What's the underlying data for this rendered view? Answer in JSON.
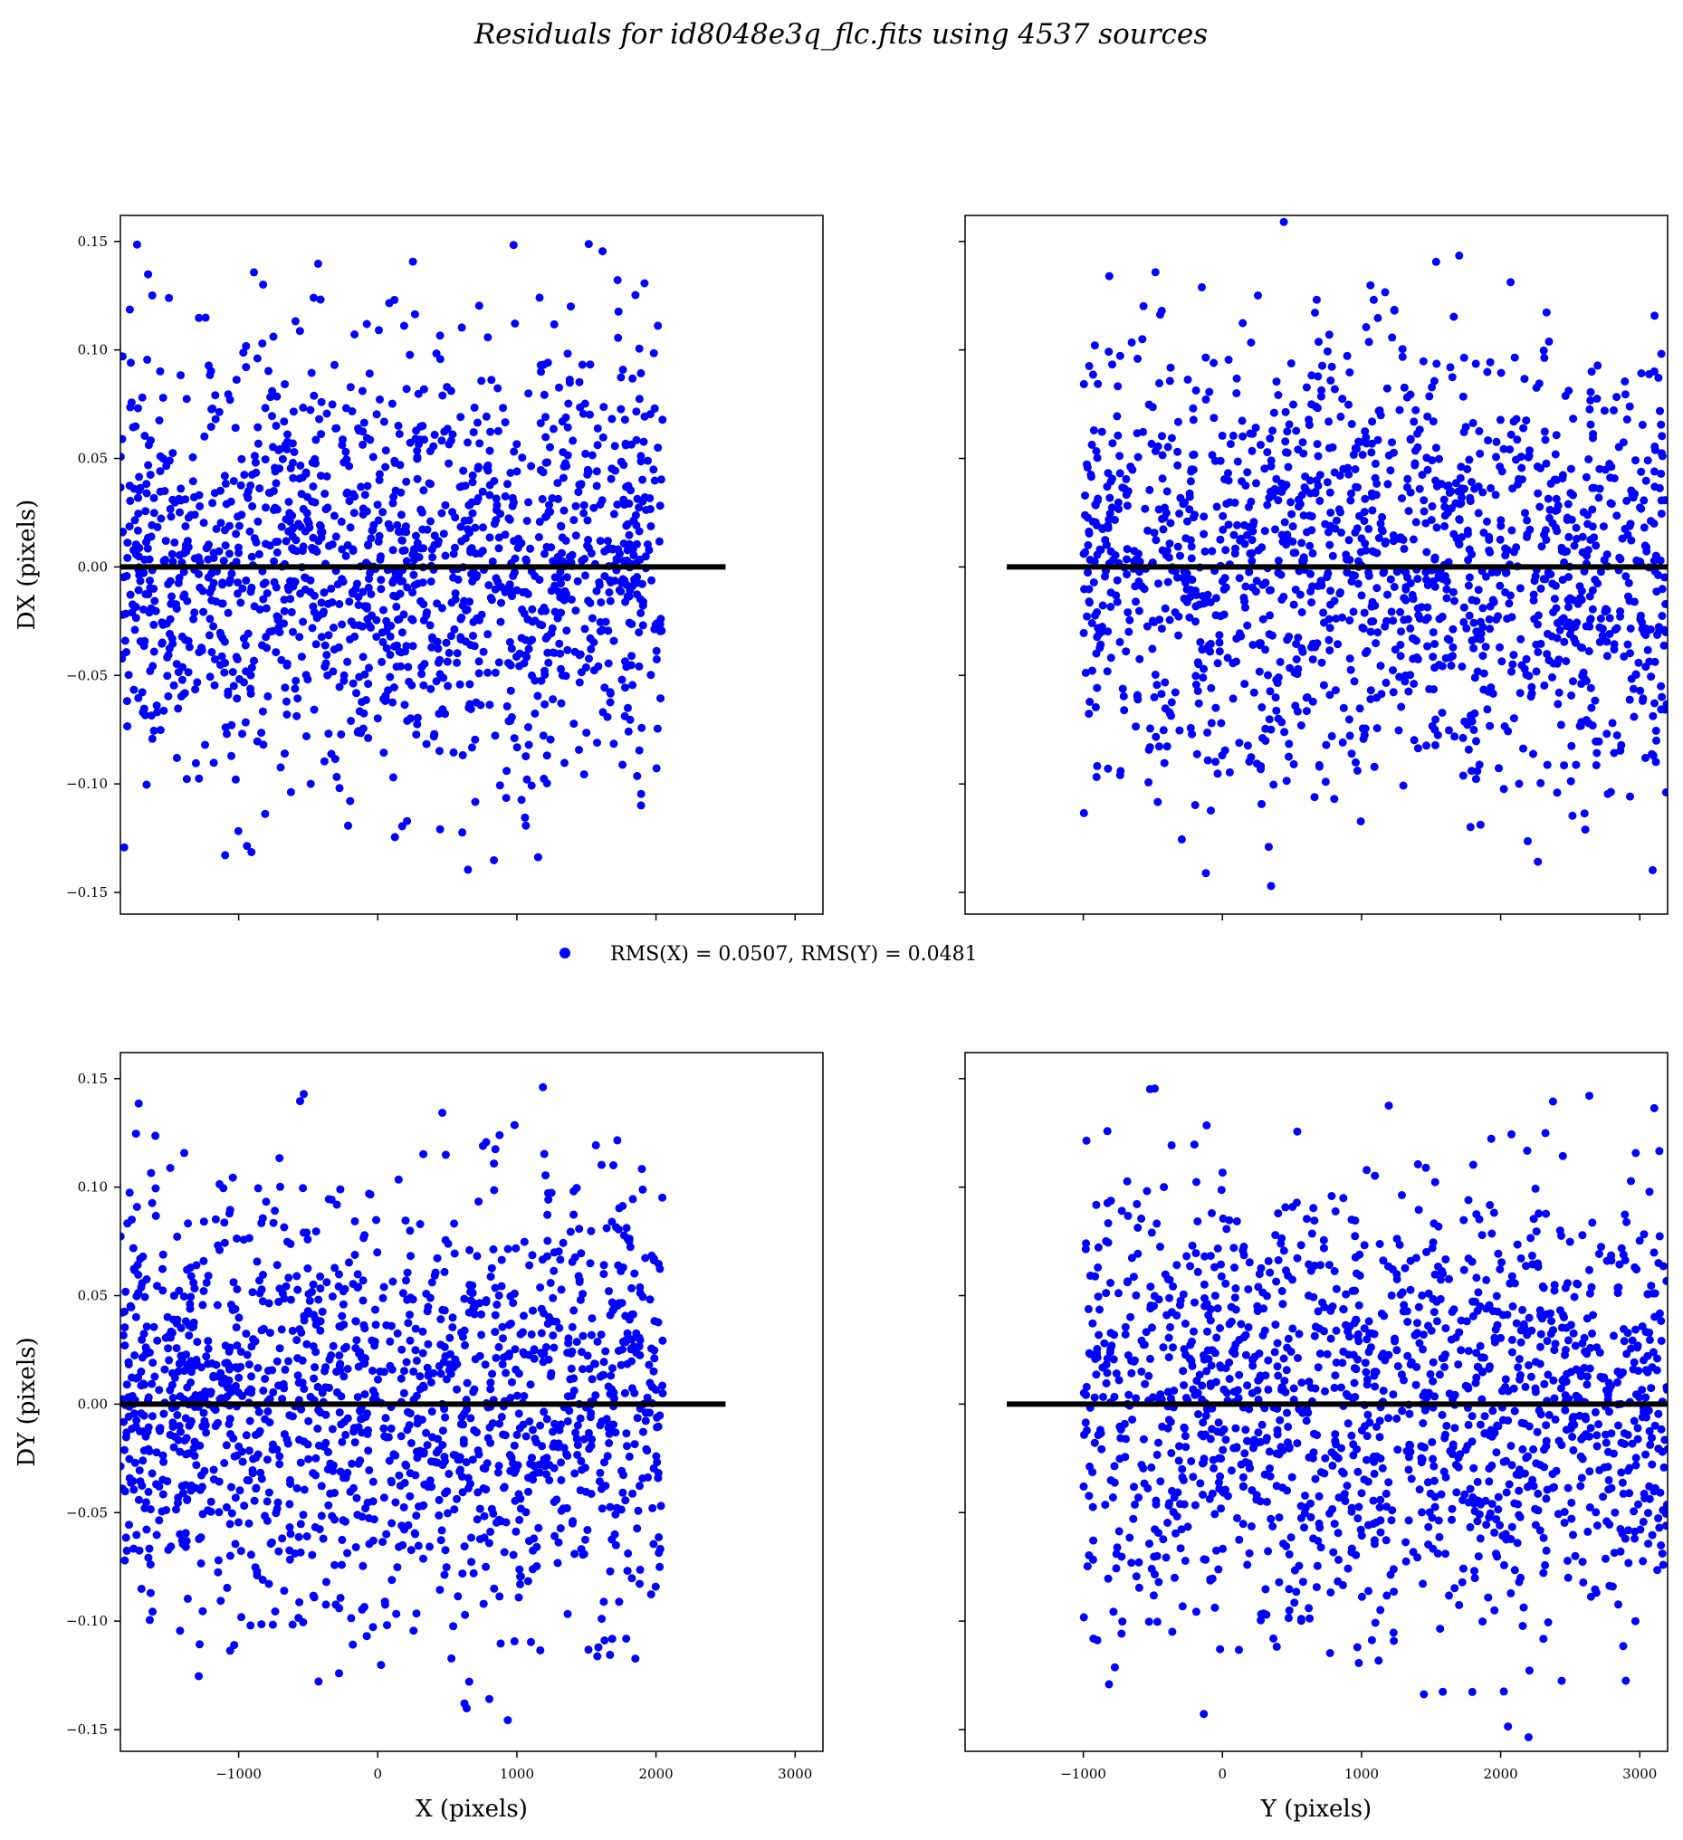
{
  "title": "Residuals for id8048e3q_flc.fits using 4537 sources",
  "legend": {
    "label": "RMS(X) = 0.0507, RMS(Y) = 0.0481",
    "marker_color": "#0000ff"
  },
  "colors": {
    "points": "#0000ff",
    "zero_line": "#000000"
  },
  "chart_data": [
    {
      "type": "scatter",
      "panel": "top-left",
      "xlabel": "",
      "ylabel": "DX (pixels)",
      "xlim": [
        -1850,
        3200
      ],
      "ylim": [
        -0.16,
        0.162
      ],
      "xticks": [
        -1000,
        0,
        1000,
        2000,
        3000
      ],
      "xtick_labels_shown": false,
      "yticks": [
        -0.15,
        -0.1,
        -0.05,
        0.0,
        0.05,
        0.1,
        0.15
      ],
      "ytick_labels_shown": true,
      "zero_line": {
        "x": [
          -1850,
          2500
        ],
        "y": 0
      },
      "series": [
        {
          "data_range": {
            "x": [
              -1850,
              2050
            ],
            "y_spread": 0.05
          }
        }
      ]
    },
    {
      "type": "scatter",
      "panel": "top-right",
      "xlabel": "",
      "ylabel": "",
      "xlim": [
        -1850,
        3200
      ],
      "ylim": [
        -0.16,
        0.162
      ],
      "xticks": [
        -1000,
        0,
        1000,
        2000,
        3000
      ],
      "xtick_labels_shown": false,
      "yticks": [
        -0.15,
        -0.1,
        -0.05,
        0.0,
        0.05,
        0.1,
        0.15
      ],
      "ytick_labels_shown": false,
      "zero_line": {
        "x": [
          -1550,
          3200
        ],
        "y": 0
      },
      "series": [
        {
          "data_range": {
            "x": [
              -1000,
              3200
            ],
            "y_spread": 0.05
          }
        }
      ]
    },
    {
      "type": "scatter",
      "panel": "bottom-left",
      "xlabel": "X (pixels)",
      "ylabel": "DY (pixels)",
      "xlim": [
        -1850,
        3200
      ],
      "ylim": [
        -0.16,
        0.162
      ],
      "xticks": [
        -1000,
        0,
        1000,
        2000,
        3000
      ],
      "xtick_labels_shown": true,
      "yticks": [
        -0.15,
        -0.1,
        -0.05,
        0.0,
        0.05,
        0.1,
        0.15
      ],
      "ytick_labels_shown": true,
      "zero_line": {
        "x": [
          -1850,
          2500
        ],
        "y": 0
      },
      "series": [
        {
          "data_range": {
            "x": [
              -1850,
              2050
            ],
            "y_spread": 0.05
          }
        }
      ]
    },
    {
      "type": "scatter",
      "panel": "bottom-right",
      "xlabel": "Y (pixels)",
      "ylabel": "",
      "xlim": [
        -1850,
        3200
      ],
      "ylim": [
        -0.16,
        0.162
      ],
      "xticks": [
        -1000,
        0,
        1000,
        2000,
        3000
      ],
      "xtick_labels_shown": true,
      "yticks": [
        -0.15,
        -0.1,
        -0.05,
        0.0,
        0.05,
        0.1,
        0.15
      ],
      "ytick_labels_shown": false,
      "zero_line": {
        "x": [
          -1550,
          3200
        ],
        "y": 0
      },
      "series": [
        {
          "data_range": {
            "x": [
              -1000,
              3200
            ],
            "y_spread": 0.05
          }
        }
      ]
    }
  ]
}
